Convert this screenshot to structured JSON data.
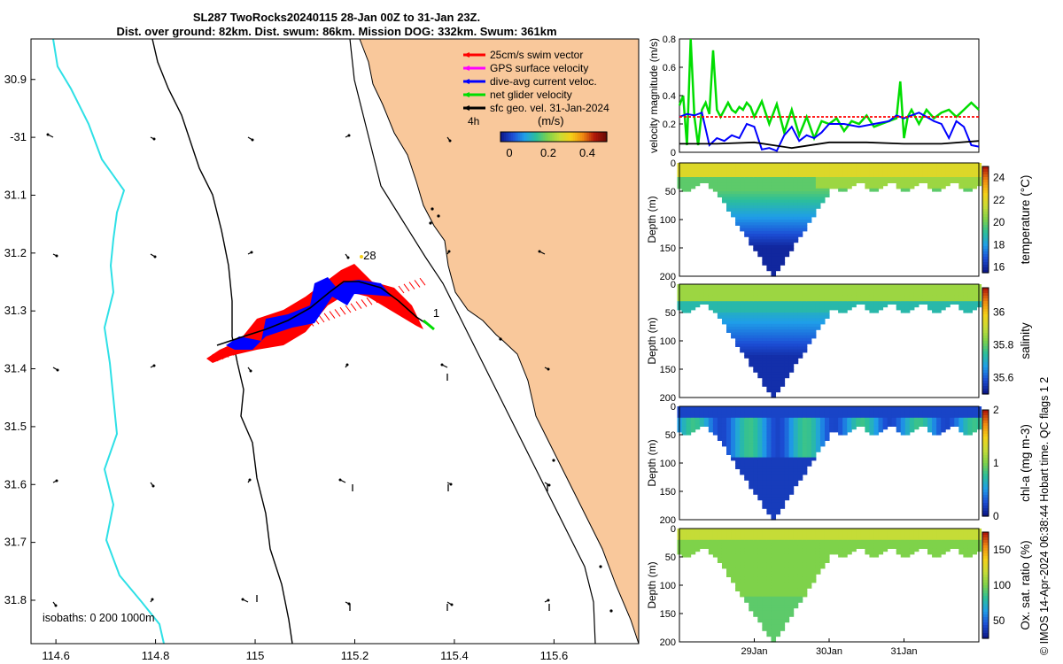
{
  "title": {
    "line1": "SL287 TwoRocks20240115 28-Jan 00Z to 31-Jan 23Z.",
    "line2": "Dist. over ground: 82km. Dist. swum: 86km. Mission DOG: 332km. Swum: 361km"
  },
  "colors": {
    "land": "#f9c89b",
    "isobath_200": "#000000",
    "isobath_1000": "#000000",
    "isobath_deep": "#2ee0e6",
    "swim_vector": "#ff0000",
    "gps_surface": "#ff00ff",
    "dive_avg": "#0000ff",
    "net_glider": "#00dd00",
    "sfc_geo": "#000000"
  },
  "map": {
    "legend": [
      {
        "label": "25cm/s swim vector",
        "color": "#ff0000"
      },
      {
        "label": "GPS surface velocity",
        "color": "#ff00ff"
      },
      {
        "label": "dive-avg current veloc.",
        "color": "#0000ff"
      },
      {
        "label": "net glider velocity",
        "color": "#00dd00"
      },
      {
        "label": "sfc geo. vel. 31-Jan-2024",
        "color": "#000000"
      }
    ],
    "interval_label": "4h",
    "colorbar": {
      "title": "(m/s)",
      "ticks": [
        "0",
        "0.2",
        "0.4"
      ],
      "range": [
        0,
        0.5
      ]
    },
    "isobath_label": "isobaths: 0   200  1000m",
    "day_labels": [
      {
        "text": "28",
        "lon": 115.21,
        "lat": -31.2
      },
      {
        "text": "1",
        "lon": 115.35,
        "lat": -31.3
      }
    ],
    "lon_ticks": [
      "114.6",
      "114.8",
      "115",
      "115.2",
      "115.4",
      "115.6"
    ],
    "lat_ticks": [
      "30.9",
      "-31",
      "31.1",
      "31.2",
      "31.3",
      "31.4",
      "31.5",
      "31.6",
      "31.7",
      "31.8"
    ],
    "lon_range": [
      114.55,
      115.77
    ],
    "lat_range": [
      -31.875,
      -30.83
    ]
  },
  "chart_data": [
    {
      "type": "line",
      "ylabel": "velocity magnitude (m/s)",
      "ylim": [
        0,
        0.8
      ],
      "yticks": [
        "0",
        "0.2",
        "0.4",
        "0.6",
        "0.8"
      ],
      "xlim": [
        28.0,
        32.0
      ],
      "series": [
        {
          "color": "#00dd00",
          "x": [
            28.0,
            28.05,
            28.1,
            28.15,
            28.2,
            28.25,
            28.3,
            28.35,
            28.4,
            28.45,
            28.5,
            28.55,
            28.6,
            28.65,
            28.7,
            28.75,
            28.8,
            28.85,
            28.9,
            28.95,
            29.0,
            29.1,
            29.2,
            29.3,
            29.4,
            29.5,
            29.6,
            29.7,
            29.8,
            29.9,
            30.0,
            30.1,
            30.2,
            30.3,
            30.4,
            30.5,
            30.6,
            30.7,
            30.8,
            30.9,
            30.95,
            31.0,
            31.05,
            31.1,
            31.2,
            31.3,
            31.4,
            31.5,
            31.6,
            31.7,
            31.8,
            31.9,
            32.0
          ],
          "values": [
            0.33,
            0.4,
            0.05,
            0.8,
            0.25,
            0.05,
            0.3,
            0.35,
            0.27,
            0.72,
            0.3,
            0.25,
            0.3,
            0.35,
            0.3,
            0.28,
            0.32,
            0.3,
            0.35,
            0.32,
            0.25,
            0.36,
            0.2,
            0.34,
            0.14,
            0.3,
            0.12,
            0.25,
            0.1,
            0.22,
            0.2,
            0.24,
            0.15,
            0.22,
            0.2,
            0.26,
            0.18,
            0.2,
            0.22,
            0.24,
            0.5,
            0.1,
            0.25,
            0.3,
            0.2,
            0.3,
            0.24,
            0.28,
            0.3,
            0.25,
            0.3,
            0.35,
            0.3
          ]
        },
        {
          "color": "#0000ff",
          "x": [
            28.0,
            28.1,
            28.2,
            28.3,
            28.4,
            28.5,
            28.6,
            28.7,
            28.8,
            28.9,
            29.0,
            29.1,
            29.2,
            29.3,
            29.4,
            29.5,
            29.6,
            29.7,
            29.8,
            29.9,
            30.0,
            30.2,
            30.4,
            30.6,
            30.8,
            30.9,
            31.0,
            31.2,
            31.3,
            31.4,
            31.5,
            31.6,
            31.7,
            31.8,
            31.9,
            32.0
          ],
          "values": [
            0.25,
            0.27,
            0.26,
            0.28,
            0.05,
            0.1,
            0.08,
            0.12,
            0.1,
            0.2,
            0.18,
            0.02,
            0.03,
            0.01,
            0.12,
            0.18,
            0.08,
            0.12,
            0.1,
            0.14,
            0.2,
            0.2,
            0.18,
            0.2,
            0.22,
            0.26,
            0.24,
            0.28,
            0.25,
            0.22,
            0.2,
            0.1,
            0.22,
            0.18,
            0.05,
            0.04
          ]
        },
        {
          "color": "#000000",
          "x": [
            28.0,
            28.5,
            29.0,
            29.5,
            30.0,
            30.5,
            31.0,
            31.5,
            32.0
          ],
          "values": [
            0.06,
            0.06,
            0.07,
            0.03,
            0.07,
            0.07,
            0.06,
            0.06,
            0.08
          ]
        },
        {
          "color": "#ff0000",
          "x": [
            28.0,
            32.0
          ],
          "values": [
            0.25,
            0.25
          ]
        }
      ]
    },
    {
      "type": "heatmap",
      "ylabel": "Depth (m)",
      "cbar_label": "temperature (°C)",
      "cbar_ticks": [
        "16",
        "18",
        "20",
        "22",
        "24"
      ],
      "vrange": [
        15.5,
        25
      ],
      "ylim": [
        0,
        200
      ],
      "yticks": [
        "0",
        "50",
        "100",
        "150",
        "200"
      ],
      "colors": [
        "#0d1a8c",
        "#1c4fd6",
        "#1f9ee8",
        "#2cbf9a",
        "#7ed24a",
        "#c8dc36",
        "#f5d018",
        "#f08a10",
        "#b21a0a"
      ]
    },
    {
      "type": "heatmap",
      "ylabel": "Depth (m)",
      "cbar_label": "salinity",
      "cbar_ticks": [
        "35.6",
        "35.8",
        "36"
      ],
      "vrange": [
        35.5,
        36.15
      ],
      "ylim": [
        0,
        200
      ],
      "yticks": [
        "0",
        "50",
        "100",
        "150",
        "200"
      ],
      "colors": [
        "#0d1a8c",
        "#1c4fd6",
        "#1f9ee8",
        "#2cbf9a",
        "#7ed24a",
        "#c8dc36",
        "#f5d018",
        "#f08a10",
        "#b21a0a"
      ]
    },
    {
      "type": "heatmap",
      "ylabel": "Depth (m)",
      "cbar_label": "chl-a (mg m-3)",
      "cbar_ticks": [
        "0",
        "1",
        "2"
      ],
      "vrange": [
        0,
        2
      ],
      "ylim": [
        0,
        200
      ],
      "yticks": [
        "0",
        "50",
        "100",
        "150",
        "200"
      ],
      "colors": [
        "#0d1a8c",
        "#1c4fd6",
        "#1f9ee8",
        "#2cbf9a",
        "#7ed24a",
        "#c8dc36",
        "#f5d018",
        "#f08a10",
        "#b21a0a"
      ]
    },
    {
      "type": "heatmap",
      "ylabel": "Depth (m)",
      "cbar_label": "Ox. sat. ratio (%)",
      "cbar_ticks": [
        "50",
        "100",
        "150"
      ],
      "vrange": [
        25,
        175
      ],
      "ylim": [
        0,
        200
      ],
      "yticks": [
        "0",
        "50",
        "100",
        "150",
        "200"
      ],
      "xticks": [
        "29Jan",
        "30Jan",
        "31Jan"
      ],
      "colors": [
        "#0d1a8c",
        "#1c4fd6",
        "#1f9ee8",
        "#2cbf9a",
        "#7ed24a",
        "#c8dc36",
        "#f5d018",
        "#f08a10",
        "#b21a0a"
      ]
    }
  ],
  "credit": "© IMOS 14-Apr-2024 06:38:44 Hobart time. QC flags 1  2"
}
